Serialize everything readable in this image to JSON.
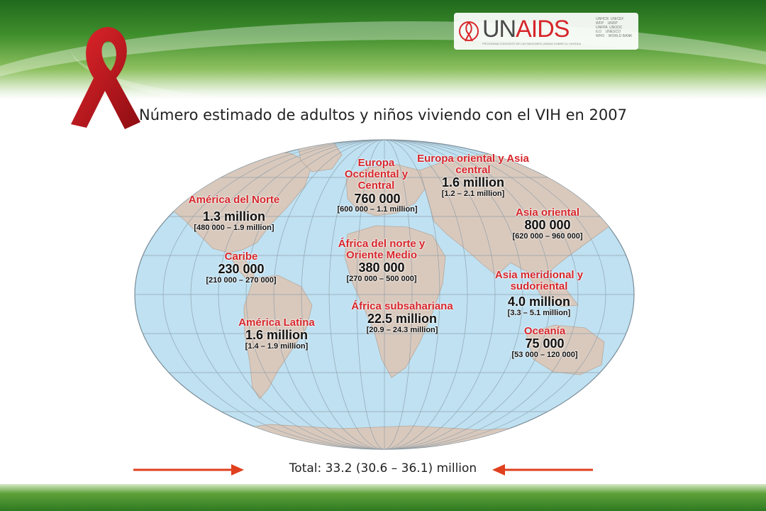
{
  "header": {
    "logo_un": "UN",
    "logo_aids": "AIDS",
    "logo_subtitle": "PROGRAMA CONJUNTO DE LAS NACIONES UNIDAS SOBRE EL VIH/SIDA",
    "logo_small_text": "UNHCR  UNICEF\nWFP    UNDP\nUNFPA  UNODC\nILO    UNESCO\nWHO    WORLD BANK"
  },
  "title": "Número estimado de adultos y niños viviendo con el VIH en 2007",
  "regions": [
    {
      "id": "north-america",
      "name": "América del Norte",
      "value": "1.3 million",
      "range": "[480 000 – 1.9 million]"
    },
    {
      "id": "caribbean",
      "name": "Caribe",
      "value": "230 000",
      "range": "[210 000 – 270 000]"
    },
    {
      "id": "latin-america",
      "name": "América Latina",
      "value": "1.6 million",
      "range": "[1.4 – 1.9 million]"
    },
    {
      "id": "western-central-europe",
      "name": "Europa Occidental y Central",
      "value": "760 000",
      "range": "[600 000 – 1.1 million]"
    },
    {
      "id": "eastern-europe-central-asia",
      "name": "Europa oriental y Asia central",
      "value": "1.6 million",
      "range": "[1.2 – 2.1 million]"
    },
    {
      "id": "north-africa-middle-east",
      "name": "África del norte y Oriente Medio",
      "value": "380 000",
      "range": "[270 000 – 500 000]"
    },
    {
      "id": "sub-saharan-africa",
      "name": "África subsahariana",
      "value": "22.5 million",
      "range": "[20.9 – 24.3 million]"
    },
    {
      "id": "east-asia",
      "name": "Asia oriental",
      "value": "800 000",
      "range": "[620 000 – 960 000]"
    },
    {
      "id": "south-southeast-asia",
      "name": "Asia meridional y sudoriental",
      "value": "4.0 million",
      "range": "[3.3 – 5.1 million]"
    },
    {
      "id": "oceania",
      "name": "Oceanía",
      "value": "75 000",
      "range": "[53 000 – 120 000]"
    }
  ],
  "total": "Total: 33.2 (30.6 – 36.1) million",
  "colors": {
    "ocean": "#bfe1f2",
    "land": "#d9c9bd",
    "label_red": "#d6262b",
    "ribbon": "#c4161c",
    "arrow": "#e0401f"
  }
}
